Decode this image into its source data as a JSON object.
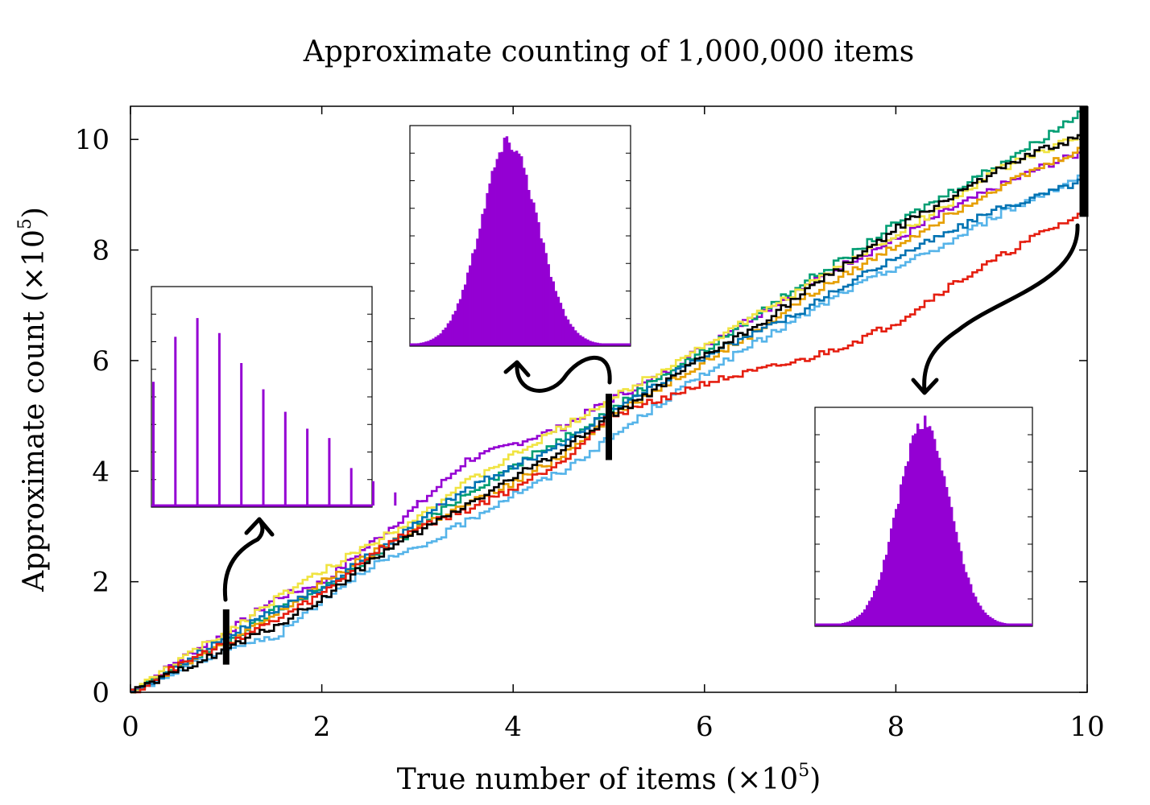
{
  "chart_data": {
    "type": "line",
    "title": "Approximate counting of 1,000,000 items",
    "xlabel": "True number of items (×10",
    "xlabel_exp": "5",
    "xlabel_close": ")",
    "ylabel": "Approximate count (×10",
    "ylabel_exp": "5",
    "ylabel_close": ")",
    "xlim": [
      0,
      10
    ],
    "ylim": [
      0,
      10.6
    ],
    "xticks": [
      "0",
      "2",
      "4",
      "6",
      "8",
      "10"
    ],
    "yticks": [
      "0",
      "2",
      "4",
      "6",
      "8",
      "10"
    ],
    "grid": false,
    "legend": "none",
    "series": [
      {
        "color": "#9400d3",
        "x": [
          0,
          0.5,
          1,
          1.5,
          2,
          2.5,
          3,
          3.5,
          4,
          4.5,
          5,
          5.5,
          6,
          6.5,
          7,
          7.5,
          8,
          8.5,
          9,
          9.5,
          10
        ],
        "values": [
          0,
          0.6,
          1.1,
          1.7,
          2.0,
          2.7,
          3.4,
          4.2,
          4.5,
          4.8,
          5.3,
          5.7,
          6.3,
          6.8,
          7.3,
          7.8,
          8.2,
          8.7,
          9.1,
          9.5,
          9.8
        ]
      },
      {
        "color": "#009e73",
        "x": [
          0,
          0.5,
          1,
          1.5,
          2,
          2.5,
          3,
          3.5,
          4,
          4.5,
          5,
          5.5,
          6,
          6.5,
          7,
          7.5,
          8,
          8.5,
          9,
          9.5,
          10
        ],
        "values": [
          0,
          0.5,
          0.9,
          1.5,
          1.9,
          2.4,
          3.0,
          3.6,
          4.1,
          4.6,
          5.1,
          5.7,
          6.2,
          6.8,
          7.4,
          7.9,
          8.5,
          9.0,
          9.5,
          10.0,
          10.6
        ]
      },
      {
        "color": "#56b4e9",
        "x": [
          0,
          0.5,
          1,
          1.5,
          2,
          2.5,
          3,
          3.5,
          4,
          4.5,
          5,
          5.5,
          6,
          6.5,
          7,
          7.5,
          8,
          8.5,
          9,
          9.5,
          10
        ],
        "values": [
          0,
          0.4,
          0.8,
          1.0,
          1.7,
          2.3,
          2.6,
          3.1,
          3.6,
          4.0,
          4.6,
          5.2,
          5.8,
          6.3,
          6.8,
          7.3,
          7.7,
          8.1,
          8.6,
          9.0,
          9.4
        ]
      },
      {
        "color": "#e69f00",
        "x": [
          0,
          0.5,
          1,
          1.5,
          2,
          2.5,
          3,
          3.5,
          4,
          4.5,
          5,
          5.5,
          6,
          6.5,
          7,
          7.5,
          8,
          8.5,
          9,
          9.5,
          10
        ],
        "values": [
          0,
          0.5,
          0.9,
          1.4,
          2.0,
          2.5,
          3.0,
          3.4,
          3.8,
          4.3,
          5.0,
          5.5,
          6.0,
          6.5,
          7.1,
          7.6,
          8.1,
          8.6,
          9.1,
          9.5,
          9.9
        ]
      },
      {
        "color": "#f0e442",
        "x": [
          0,
          0.5,
          1,
          1.5,
          2,
          2.5,
          3,
          3.5,
          4,
          4.5,
          5,
          5.5,
          6,
          6.5,
          7,
          7.5,
          8,
          8.5,
          9,
          9.5,
          10
        ],
        "values": [
          0,
          0.6,
          1.1,
          1.7,
          2.2,
          2.7,
          3.2,
          3.8,
          4.3,
          4.8,
          5.3,
          5.8,
          6.3,
          6.8,
          7.3,
          7.8,
          8.3,
          8.8,
          9.4,
          9.8,
          10.1
        ]
      },
      {
        "color": "#0072b2",
        "x": [
          0,
          0.5,
          1,
          1.5,
          2,
          2.5,
          3,
          3.5,
          4,
          4.5,
          5,
          5.5,
          6,
          6.5,
          7,
          7.5,
          8,
          8.5,
          9,
          9.5,
          10
        ],
        "values": [
          0,
          0.5,
          1.0,
          1.5,
          1.9,
          2.5,
          3.1,
          3.7,
          4.1,
          4.5,
          5.1,
          5.6,
          6.1,
          6.5,
          6.9,
          7.4,
          7.9,
          8.3,
          8.7,
          9.0,
          9.3
        ]
      },
      {
        "color": "#e51e10",
        "x": [
          0,
          0.5,
          1,
          1.5,
          2,
          2.5,
          3,
          3.5,
          4,
          4.5,
          5,
          5.5,
          6,
          6.5,
          7,
          7.5,
          8,
          8.5,
          9,
          9.5,
          10
        ],
        "values": [
          0,
          0.5,
          0.9,
          1.3,
          1.8,
          2.5,
          3.0,
          3.3,
          3.7,
          4.2,
          5.0,
          5.3,
          5.6,
          5.8,
          6.0,
          6.3,
          6.7,
          7.3,
          7.8,
          8.3,
          8.7
        ]
      },
      {
        "color": "#000000",
        "x": [
          0,
          0.5,
          1,
          1.5,
          2,
          2.5,
          3,
          3.5,
          4,
          4.5,
          5,
          5.5,
          6,
          6.5,
          7,
          7.5,
          8,
          8.5,
          9,
          9.5,
          10
        ],
        "values": [
          0,
          0.4,
          0.8,
          1.2,
          1.7,
          2.4,
          2.9,
          3.4,
          3.9,
          4.4,
          5.0,
          5.5,
          6.1,
          6.6,
          7.2,
          7.8,
          8.4,
          8.9,
          9.4,
          9.8,
          10.1
        ]
      }
    ],
    "markers": [
      {
        "x": 1,
        "ymin": 0.5,
        "ymax": 1.5
      },
      {
        "x": 5,
        "ymin": 4.2,
        "ymax": 5.4
      },
      {
        "x": 10,
        "ymin": 8.6,
        "ymax": 10.6
      }
    ],
    "insets": [
      {
        "type": "bar",
        "color": "#9400d3",
        "values": [
          0.66,
          0.9,
          1.0,
          0.92,
          0.76,
          0.62,
          0.5,
          0.41,
          0.36,
          0.2,
          0.13,
          0.07,
          0.03,
          0.01
        ]
      },
      {
        "type": "histogram",
        "color": "#9400d3",
        "shape": "gaussian",
        "center": 0.45,
        "width": 0.13
      },
      {
        "type": "histogram",
        "color": "#9400d3",
        "shape": "gaussian",
        "center": 0.5,
        "width": 0.12
      }
    ]
  }
}
